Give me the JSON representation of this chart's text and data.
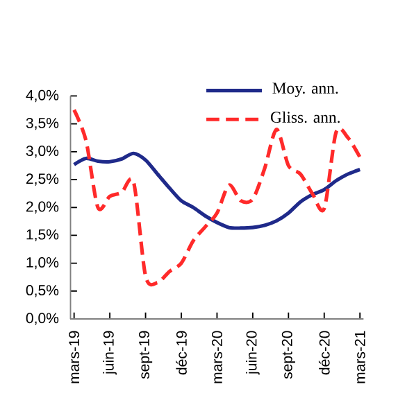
{
  "chart_data": {
    "type": "line",
    "categories": [
      "mars-19",
      null,
      null,
      "juin-19",
      null,
      null,
      "sept-19",
      null,
      null,
      "déc-19",
      null,
      null,
      "mars-20",
      null,
      null,
      "juin-20",
      null,
      null,
      "sept-20",
      null,
      null,
      "déc-20",
      null,
      null,
      "mars-21"
    ],
    "series": [
      {
        "name": "Moy. ann.",
        "color": "#1f2a8a",
        "line_style": "solid",
        "values": [
          2.77,
          2.88,
          2.83,
          2.82,
          2.87,
          2.97,
          2.85,
          2.6,
          2.35,
          2.12,
          2.0,
          1.85,
          1.73,
          1.64,
          1.63,
          1.64,
          1.68,
          1.76,
          1.9,
          2.1,
          2.23,
          2.32,
          2.48,
          2.6,
          2.68
        ]
      },
      {
        "name": "Gliss. ann.",
        "color": "#ff2a2a",
        "line_style": "dashed",
        "values": [
          3.75,
          3.2,
          2.0,
          2.2,
          2.27,
          2.45,
          0.77,
          0.65,
          0.85,
          1.0,
          1.4,
          1.65,
          1.9,
          2.4,
          2.12,
          2.15,
          2.7,
          3.4,
          2.75,
          2.6,
          2.25,
          1.98,
          3.35,
          3.25,
          2.9
        ]
      }
    ],
    "ylim": [
      0,
      4
    ],
    "yticks": [
      {
        "value": 0,
        "label": "0,0%"
      },
      {
        "value": 0.5,
        "label": "0,5%"
      },
      {
        "value": 1,
        "label": "1,0%"
      },
      {
        "value": 1.5,
        "label": "1,5%"
      },
      {
        "value": 2,
        "label": "2,0%"
      },
      {
        "value": 2.5,
        "label": "2,5%"
      },
      {
        "value": 3,
        "label": "3,0%"
      },
      {
        "value": 3.5,
        "label": "3,5%"
      },
      {
        "value": 4,
        "label": "4,0%"
      }
    ],
    "grid": false,
    "legend": "top right",
    "marker": "none"
  }
}
